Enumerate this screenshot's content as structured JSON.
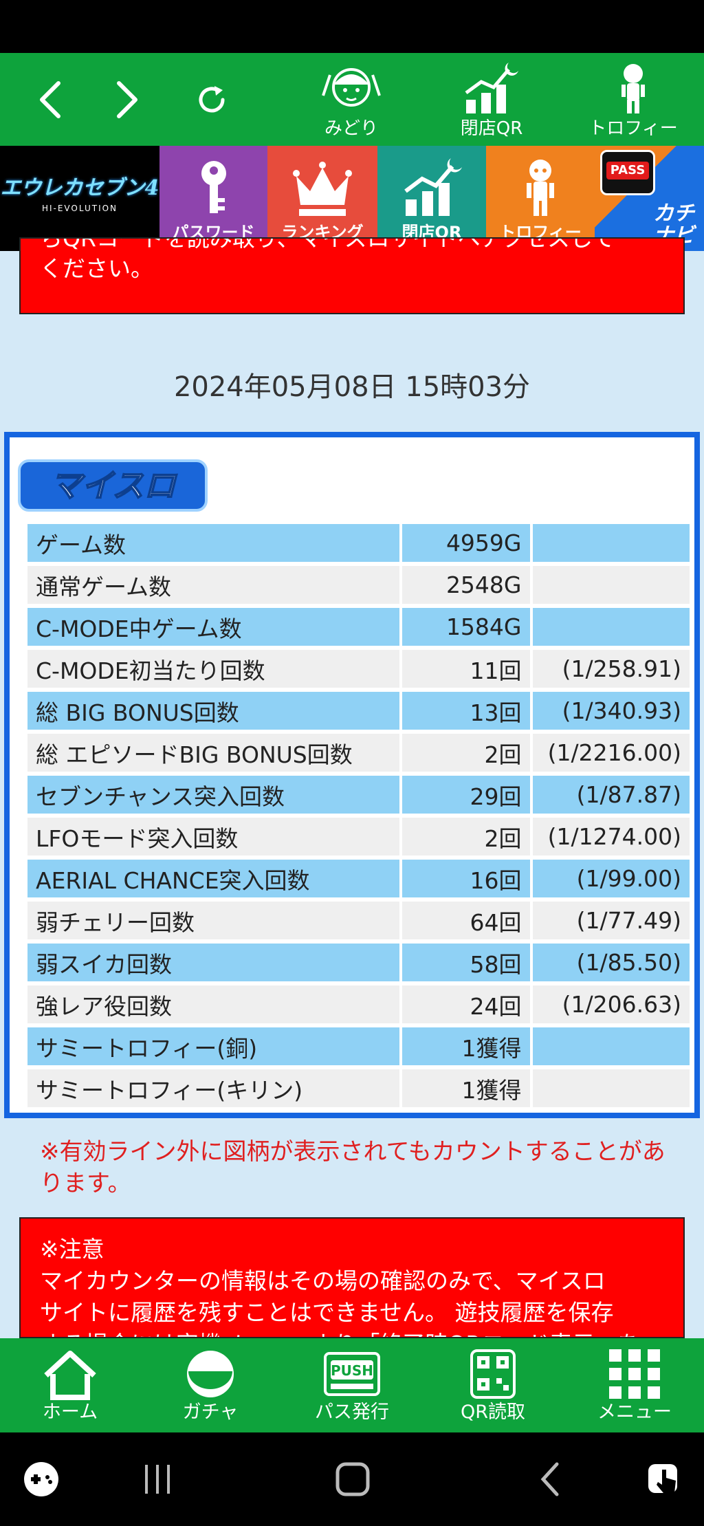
{
  "top_nav": {
    "items": [
      {
        "label": "みどり",
        "icon": "character-icon"
      },
      {
        "label": "閉店QR",
        "icon": "chart-moon-icon"
      },
      {
        "label": "トロフィー",
        "icon": "trophy-figure-icon"
      }
    ]
  },
  "tiles": {
    "logo_text": "エウレカセブン4",
    "logo_sub": "HI-EVOLUTION",
    "items": [
      {
        "label": "パスワード",
        "icon": "key-icon"
      },
      {
        "label": "ランキング",
        "icon": "crown-icon"
      },
      {
        "label": "閉店QR",
        "icon": "chart-moon-icon"
      },
      {
        "label": "トロフィー",
        "icon": "trophy-figure-icon"
      }
    ],
    "pass_badge": "PASS",
    "kachi_label": "カチナビ"
  },
  "top_notice": {
    "line1": "らQRコードを読み取り、マイスロサイトへアクセスして",
    "line2": "ください。"
  },
  "timestamp": "2024年05月08日 15時03分",
  "panel": {
    "logo": "マイスロ",
    "rows": [
      {
        "name": "ゲーム数",
        "value": "4959G",
        "ratio": ""
      },
      {
        "name": "通常ゲーム数",
        "value": "2548G",
        "ratio": ""
      },
      {
        "name": "C-MODE中ゲーム数",
        "value": "1584G",
        "ratio": ""
      },
      {
        "name": "C-MODE初当たり回数",
        "value": "11回",
        "ratio": "(1/258.91)"
      },
      {
        "name": "総 BIG BONUS回数",
        "value": "13回",
        "ratio": "(1/340.93)"
      },
      {
        "name": "総 エピソードBIG BONUS回数",
        "value": "2回",
        "ratio": "(1/2216.00)"
      },
      {
        "name": "セブンチャンス突入回数",
        "value": "29回",
        "ratio": "(1/87.87)"
      },
      {
        "name": "LFOモード突入回数",
        "value": "2回",
        "ratio": "(1/1274.00)"
      },
      {
        "name": "AERIAL CHANCE突入回数",
        "value": "16回",
        "ratio": "(1/99.00)"
      },
      {
        "name": "弱チェリー回数",
        "value": "64回",
        "ratio": "(1/77.49)"
      },
      {
        "name": "弱スイカ回数",
        "value": "58回",
        "ratio": "(1/85.50)"
      },
      {
        "name": "強レア役回数",
        "value": "24回",
        "ratio": "(1/206.63)"
      },
      {
        "name": "サミートロフィー(銅)",
        "value": "1獲得",
        "ratio": ""
      },
      {
        "name": "サミートロフィー(キリン)",
        "value": "1獲得",
        "ratio": ""
      }
    ]
  },
  "note": "※有効ライン外に図柄が表示されてもカウントすることがあります。",
  "caution": {
    "title": "※注意",
    "line1": "マイカウンターの情報はその場の確認のみで、マイスロ",
    "line2": "サイトに履歴を残すことはできません。 遊技履歴を保存",
    "line3": "する場合には実機メニューより「終了時QRコード表示」を"
  },
  "bottom_nav": {
    "items": [
      {
        "label": "ホーム",
        "icon": "home-icon"
      },
      {
        "label": "ガチャ",
        "icon": "gacha-ball-icon"
      },
      {
        "label": "パス発行",
        "icon": "push-button-icon"
      },
      {
        "label": "QR読取",
        "icon": "qr-code-icon"
      },
      {
        "label": "メニュー",
        "icon": "grid-menu-icon"
      }
    ]
  },
  "colors": {
    "green": "#0ea33c",
    "panel_border": "#1565e0",
    "row_blue": "#8fd1f5",
    "row_grey": "#efefef",
    "alert_red": "#ff0000"
  }
}
